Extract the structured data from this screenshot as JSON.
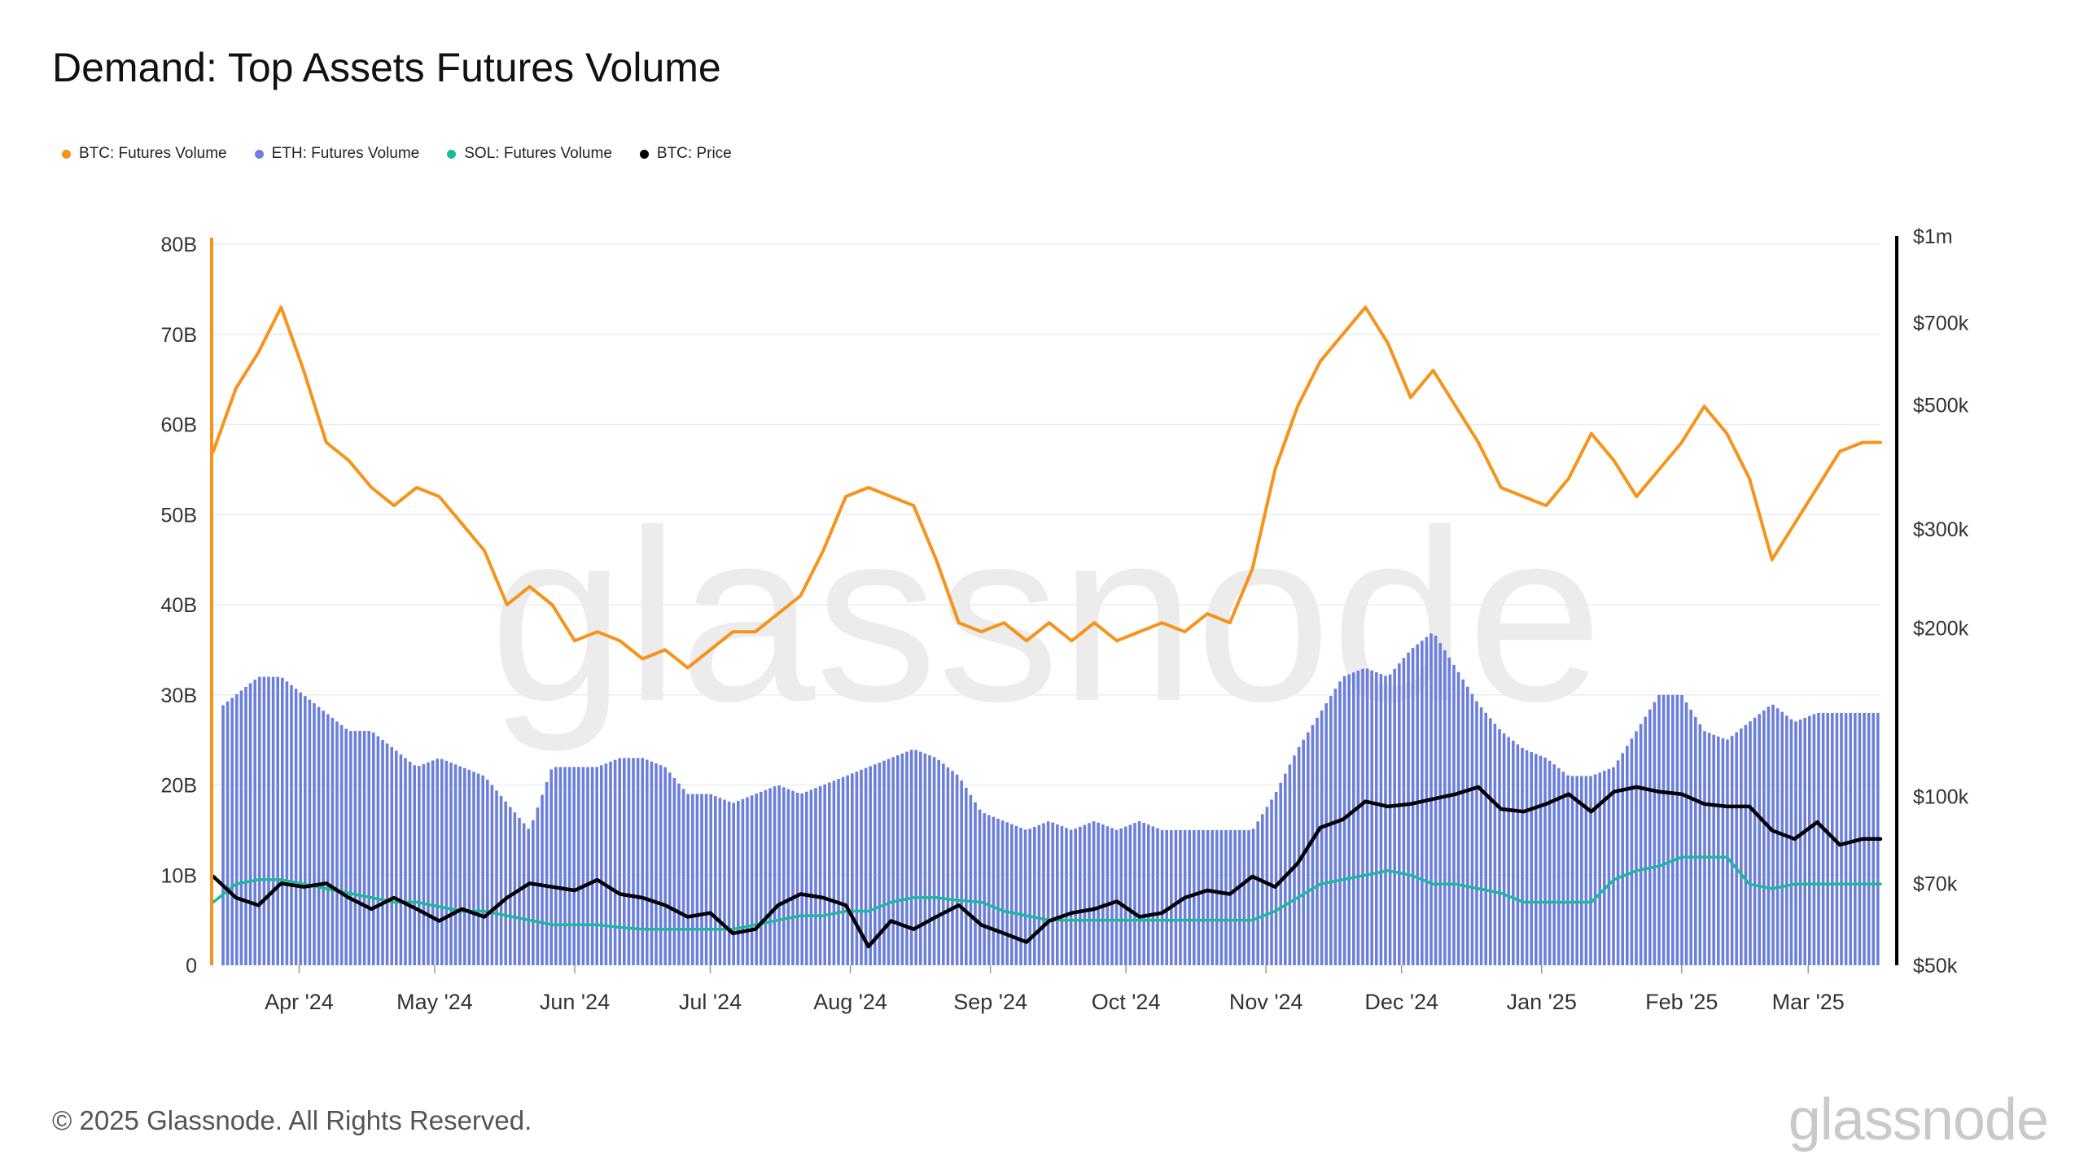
{
  "title": "Demand: Top Assets Futures Volume",
  "legend": [
    {
      "label": "BTC: Futures Volume",
      "color": "#f7931a"
    },
    {
      "label": "ETH: Futures Volume",
      "color": "#6b7fdb"
    },
    {
      "label": "SOL: Futures Volume",
      "color": "#1fb89a"
    },
    {
      "label": "BTC: Price",
      "color": "#000000"
    }
  ],
  "footer": {
    "copyright": "© 2025 Glassnode. All Rights Reserved.",
    "logo": "glassnode",
    "watermark": "glassnode"
  },
  "chart_data": {
    "type": "line",
    "title": "Demand: Top Assets Futures Volume",
    "x_range": [
      "2024-03-13",
      "2025-03-17"
    ],
    "x_tick_labels": [
      "Apr '24",
      "May '24",
      "Jun '24",
      "Jul '24",
      "Aug '24",
      "Sep '24",
      "Oct '24",
      "Nov '24",
      "Dec '24",
      "Jan '25",
      "Feb '25",
      "Mar '25"
    ],
    "left_axis": {
      "ticks": [
        "0",
        "10B",
        "20B",
        "30B",
        "40B",
        "50B",
        "60B",
        "70B",
        "80B"
      ],
      "ylim": [
        0,
        80000000000
      ],
      "color": "#f7931a"
    },
    "right_axis": {
      "scale": "log",
      "ticks": [
        "$50k",
        "$70k",
        "$100k",
        "$200k",
        "$300k",
        "$500k",
        "$700k",
        "$1m"
      ],
      "tick_values": [
        50000,
        70000,
        100000,
        200000,
        300000,
        500000,
        700000,
        1000000
      ],
      "ylim": [
        50000,
        1000000
      ],
      "color": "#000000"
    },
    "grid": true,
    "legend_position": "top-left",
    "series": [
      {
        "name": "BTC: Futures Volume",
        "type": "line",
        "axis": "left",
        "color": "#f7931a",
        "unit": "B",
        "x": [
          "2024-03-13",
          "2024-03-18",
          "2024-03-23",
          "2024-03-28",
          "2024-04-02",
          "2024-04-07",
          "2024-04-12",
          "2024-04-17",
          "2024-04-22",
          "2024-04-27",
          "2024-05-02",
          "2024-05-07",
          "2024-05-12",
          "2024-05-17",
          "2024-05-22",
          "2024-05-27",
          "2024-06-01",
          "2024-06-06",
          "2024-06-11",
          "2024-06-16",
          "2024-06-21",
          "2024-06-26",
          "2024-07-01",
          "2024-07-06",
          "2024-07-11",
          "2024-07-16",
          "2024-07-21",
          "2024-07-26",
          "2024-07-31",
          "2024-08-05",
          "2024-08-10",
          "2024-08-15",
          "2024-08-20",
          "2024-08-25",
          "2024-08-30",
          "2024-09-04",
          "2024-09-09",
          "2024-09-14",
          "2024-09-19",
          "2024-09-24",
          "2024-09-29",
          "2024-10-04",
          "2024-10-09",
          "2024-10-14",
          "2024-10-19",
          "2024-10-24",
          "2024-10-29",
          "2024-11-03",
          "2024-11-08",
          "2024-11-13",
          "2024-11-18",
          "2024-11-23",
          "2024-11-28",
          "2024-12-03",
          "2024-12-08",
          "2024-12-13",
          "2024-12-18",
          "2024-12-23",
          "2024-12-28",
          "2025-01-02",
          "2025-01-07",
          "2025-01-12",
          "2025-01-17",
          "2025-01-22",
          "2025-01-27",
          "2025-02-01",
          "2025-02-06",
          "2025-02-11",
          "2025-02-16",
          "2025-02-21",
          "2025-02-26",
          "2025-03-03",
          "2025-03-08",
          "2025-03-13",
          "2025-03-17"
        ],
        "values": [
          57,
          64,
          68,
          73,
          66,
          58,
          56,
          53,
          51,
          53,
          52,
          49,
          46,
          40,
          42,
          40,
          36,
          37,
          36,
          34,
          35,
          33,
          35,
          37,
          37,
          39,
          41,
          46,
          52,
          53,
          52,
          51,
          45,
          38,
          37,
          38,
          36,
          38,
          36,
          38,
          36,
          37,
          38,
          37,
          39,
          38,
          44,
          55,
          62,
          67,
          70,
          73,
          69,
          63,
          66,
          62,
          58,
          53,
          52,
          51,
          54,
          59,
          56,
          52,
          55,
          58,
          62,
          59,
          54,
          45,
          49,
          53,
          57,
          58,
          58
        ]
      },
      {
        "name": "ETH: Futures Volume",
        "type": "bar",
        "axis": "left",
        "color": "#6b7fdb",
        "unit": "B",
        "x": [
          "2024-03-13",
          "2024-03-18",
          "2024-03-23",
          "2024-03-28",
          "2024-04-02",
          "2024-04-07",
          "2024-04-12",
          "2024-04-17",
          "2024-04-22",
          "2024-04-27",
          "2024-05-02",
          "2024-05-07",
          "2024-05-12",
          "2024-05-17",
          "2024-05-22",
          "2024-05-27",
          "2024-06-01",
          "2024-06-06",
          "2024-06-11",
          "2024-06-16",
          "2024-06-21",
          "2024-06-26",
          "2024-07-01",
          "2024-07-06",
          "2024-07-11",
          "2024-07-16",
          "2024-07-21",
          "2024-07-26",
          "2024-07-31",
          "2024-08-05",
          "2024-08-10",
          "2024-08-15",
          "2024-08-20",
          "2024-08-25",
          "2024-08-30",
          "2024-09-04",
          "2024-09-09",
          "2024-09-14",
          "2024-09-19",
          "2024-09-24",
          "2024-09-29",
          "2024-10-04",
          "2024-10-09",
          "2024-10-14",
          "2024-10-19",
          "2024-10-24",
          "2024-10-29",
          "2024-11-03",
          "2024-11-08",
          "2024-11-13",
          "2024-11-18",
          "2024-11-23",
          "2024-11-28",
          "2024-12-03",
          "2024-12-08",
          "2024-12-13",
          "2024-12-18",
          "2024-12-23",
          "2024-12-28",
          "2025-01-02",
          "2025-01-07",
          "2025-01-12",
          "2025-01-17",
          "2025-01-22",
          "2025-01-27",
          "2025-02-01",
          "2025-02-06",
          "2025-02-11",
          "2025-02-16",
          "2025-02-21",
          "2025-02-26",
          "2025-03-03",
          "2025-03-08",
          "2025-03-13",
          "2025-03-17"
        ],
        "values": [
          28,
          30,
          32,
          32,
          30,
          28,
          26,
          26,
          24,
          22,
          23,
          22,
          21,
          18,
          15,
          22,
          22,
          22,
          23,
          23,
          22,
          19,
          19,
          18,
          19,
          20,
          19,
          20,
          21,
          22,
          23,
          24,
          23,
          21,
          17,
          16,
          15,
          16,
          15,
          16,
          15,
          16,
          15,
          15,
          15,
          15,
          15,
          19,
          24,
          28,
          32,
          33,
          32,
          35,
          37,
          33,
          29,
          26,
          24,
          23,
          21,
          21,
          22,
          26,
          30,
          30,
          26,
          25,
          27,
          29,
          27,
          28,
          28,
          28,
          28
        ]
      },
      {
        "name": "SOL: Futures Volume",
        "type": "line",
        "axis": "left",
        "color": "#1fb89a",
        "unit": "B",
        "x": [
          "2024-03-13",
          "2024-03-18",
          "2024-03-23",
          "2024-03-28",
          "2024-04-02",
          "2024-04-07",
          "2024-04-12",
          "2024-04-17",
          "2024-04-22",
          "2024-04-27",
          "2024-05-02",
          "2024-05-07",
          "2024-05-12",
          "2024-05-17",
          "2024-05-22",
          "2024-05-27",
          "2024-06-01",
          "2024-06-06",
          "2024-06-11",
          "2024-06-16",
          "2024-06-21",
          "2024-06-26",
          "2024-07-01",
          "2024-07-06",
          "2024-07-11",
          "2024-07-16",
          "2024-07-21",
          "2024-07-26",
          "2024-07-31",
          "2024-08-05",
          "2024-08-10",
          "2024-08-15",
          "2024-08-20",
          "2024-08-25",
          "2024-08-30",
          "2024-09-04",
          "2024-09-09",
          "2024-09-14",
          "2024-09-19",
          "2024-09-24",
          "2024-09-29",
          "2024-10-04",
          "2024-10-09",
          "2024-10-14",
          "2024-10-19",
          "2024-10-24",
          "2024-10-29",
          "2024-11-03",
          "2024-11-08",
          "2024-11-13",
          "2024-11-18",
          "2024-11-23",
          "2024-11-28",
          "2024-12-03",
          "2024-12-08",
          "2024-12-13",
          "2024-12-18",
          "2024-12-23",
          "2024-12-28",
          "2025-01-02",
          "2025-01-07",
          "2025-01-12",
          "2025-01-17",
          "2025-01-22",
          "2025-01-27",
          "2025-02-01",
          "2025-02-06",
          "2025-02-11",
          "2025-02-16",
          "2025-02-21",
          "2025-02-26",
          "2025-03-03",
          "2025-03-08",
          "2025-03-13",
          "2025-03-17"
        ],
        "values": [
          7,
          9,
          9.5,
          9.5,
          9,
          8.5,
          8,
          7.5,
          7,
          7,
          6.5,
          6,
          6,
          5.5,
          5,
          4.5,
          4.5,
          4.5,
          4.2,
          4,
          4,
          4,
          4,
          4,
          4.5,
          5,
          5.5,
          5.5,
          6,
          6,
          7,
          7.5,
          7.5,
          7.2,
          7,
          6,
          5.5,
          5,
          5,
          5,
          5,
          5,
          5,
          5,
          5,
          5,
          5,
          6,
          7.5,
          9,
          9.5,
          10,
          10.5,
          10,
          9,
          9,
          8.5,
          8,
          7,
          7,
          7,
          7,
          9.5,
          10.5,
          11,
          12,
          12,
          12,
          9,
          8.5,
          9,
          9,
          9,
          9,
          9
        ]
      },
      {
        "name": "BTC: Price",
        "type": "line",
        "axis": "right",
        "color": "#000000",
        "unit": "$",
        "x": [
          "2024-03-13",
          "2024-03-18",
          "2024-03-23",
          "2024-03-28",
          "2024-04-02",
          "2024-04-07",
          "2024-04-12",
          "2024-04-17",
          "2024-04-22",
          "2024-04-27",
          "2024-05-02",
          "2024-05-07",
          "2024-05-12",
          "2024-05-17",
          "2024-05-22",
          "2024-05-27",
          "2024-06-01",
          "2024-06-06",
          "2024-06-11",
          "2024-06-16",
          "2024-06-21",
          "2024-06-26",
          "2024-07-01",
          "2024-07-06",
          "2024-07-11",
          "2024-07-16",
          "2024-07-21",
          "2024-07-26",
          "2024-07-31",
          "2024-08-05",
          "2024-08-10",
          "2024-08-15",
          "2024-08-20",
          "2024-08-25",
          "2024-08-30",
          "2024-09-04",
          "2024-09-09",
          "2024-09-14",
          "2024-09-19",
          "2024-09-24",
          "2024-09-29",
          "2024-10-04",
          "2024-10-09",
          "2024-10-14",
          "2024-10-19",
          "2024-10-24",
          "2024-10-29",
          "2024-11-03",
          "2024-11-08",
          "2024-11-13",
          "2024-11-18",
          "2024-11-23",
          "2024-11-28",
          "2024-12-03",
          "2024-12-08",
          "2024-12-13",
          "2024-12-18",
          "2024-12-23",
          "2024-12-28",
          "2025-01-02",
          "2025-01-07",
          "2025-01-12",
          "2025-01-17",
          "2025-01-22",
          "2025-01-27",
          "2025-02-01",
          "2025-02-06",
          "2025-02-11",
          "2025-02-16",
          "2025-02-21",
          "2025-02-26",
          "2025-03-03",
          "2025-03-08",
          "2025-03-13",
          "2025-03-17"
        ],
        "values": [
          72000,
          66000,
          64000,
          70000,
          69000,
          70000,
          66000,
          63000,
          66000,
          63000,
          60000,
          63000,
          61000,
          66000,
          70000,
          69000,
          68000,
          71000,
          67000,
          66000,
          64000,
          61000,
          62000,
          57000,
          58000,
          64000,
          67000,
          66000,
          64000,
          54000,
          60000,
          58000,
          61000,
          64000,
          59000,
          57000,
          55000,
          60000,
          62000,
          63000,
          65000,
          61000,
          62000,
          66000,
          68000,
          67000,
          72000,
          69000,
          76000,
          88000,
          91000,
          98000,
          96000,
          97000,
          99000,
          101000,
          104000,
          95000,
          94000,
          97000,
          101000,
          94000,
          102000,
          104000,
          102000,
          101000,
          97000,
          96000,
          96000,
          87000,
          84000,
          90000,
          82000,
          84000,
          84000
        ]
      }
    ]
  }
}
